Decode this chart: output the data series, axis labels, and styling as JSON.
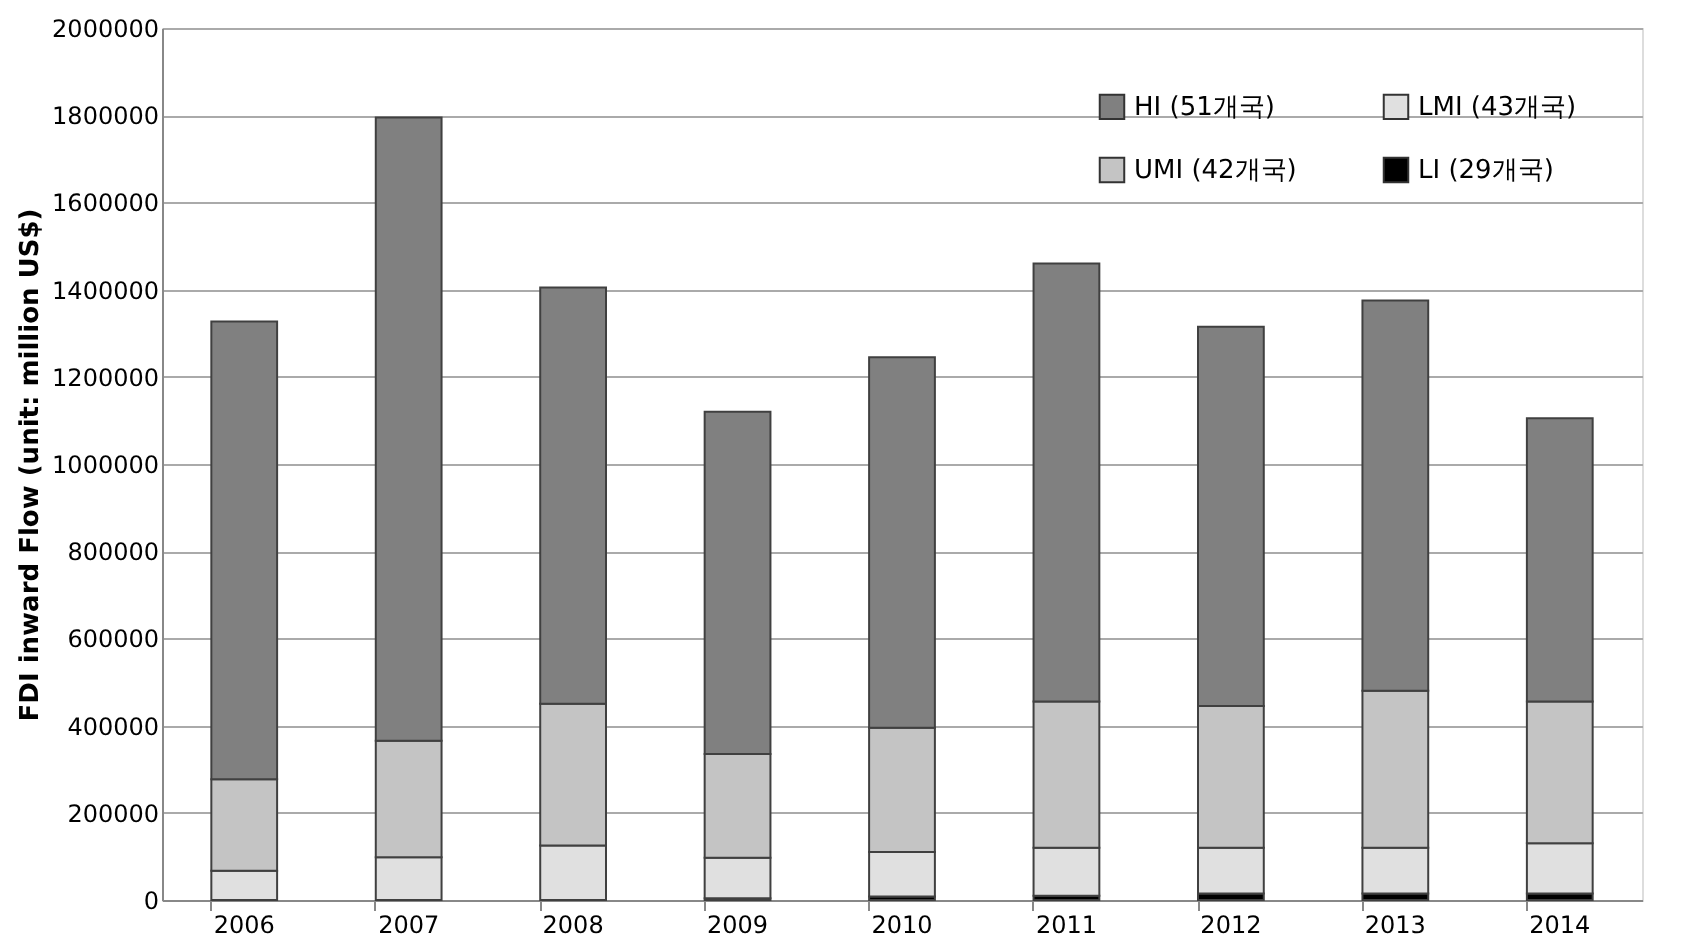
{
  "chart_data": {
    "type": "bar",
    "stacked": true,
    "ylabel": "FDI inward Flow  (unit: million US$)",
    "categories": [
      "2006",
      "2007",
      "2008",
      "2009",
      "2010",
      "2011",
      "2012",
      "2013",
      "2014"
    ],
    "series": [
      {
        "name": "LI (29개국)",
        "color": "#000000",
        "values": [
          null,
          null,
          null,
          4000,
          8000,
          10000,
          15000,
          15000,
          15000
        ]
      },
      {
        "name": "LMI (43개국)",
        "color": "#e0e0e0",
        "values": [
          67000,
          98000,
          125000,
          93000,
          102000,
          110000,
          105000,
          105000,
          115000
        ]
      },
      {
        "name": "UMI (42개국)",
        "color": "#c4c4c4",
        "values": [
          210000,
          267000,
          325000,
          238000,
          285000,
          335000,
          325000,
          360000,
          325000
        ]
      },
      {
        "name": "HI (51개국)",
        "color": "#808080",
        "values": [
          1050000,
          1430000,
          955000,
          785000,
          850000,
          1005000,
          870000,
          895000,
          650000
        ]
      }
    ],
    "ylim": [
      0,
      2000000
    ],
    "yticks": [
      0,
      200000,
      400000,
      600000,
      800000,
      1000000,
      1200000,
      1400000,
      1600000,
      1800000,
      2000000
    ],
    "grid": "y",
    "legend": "top right"
  }
}
